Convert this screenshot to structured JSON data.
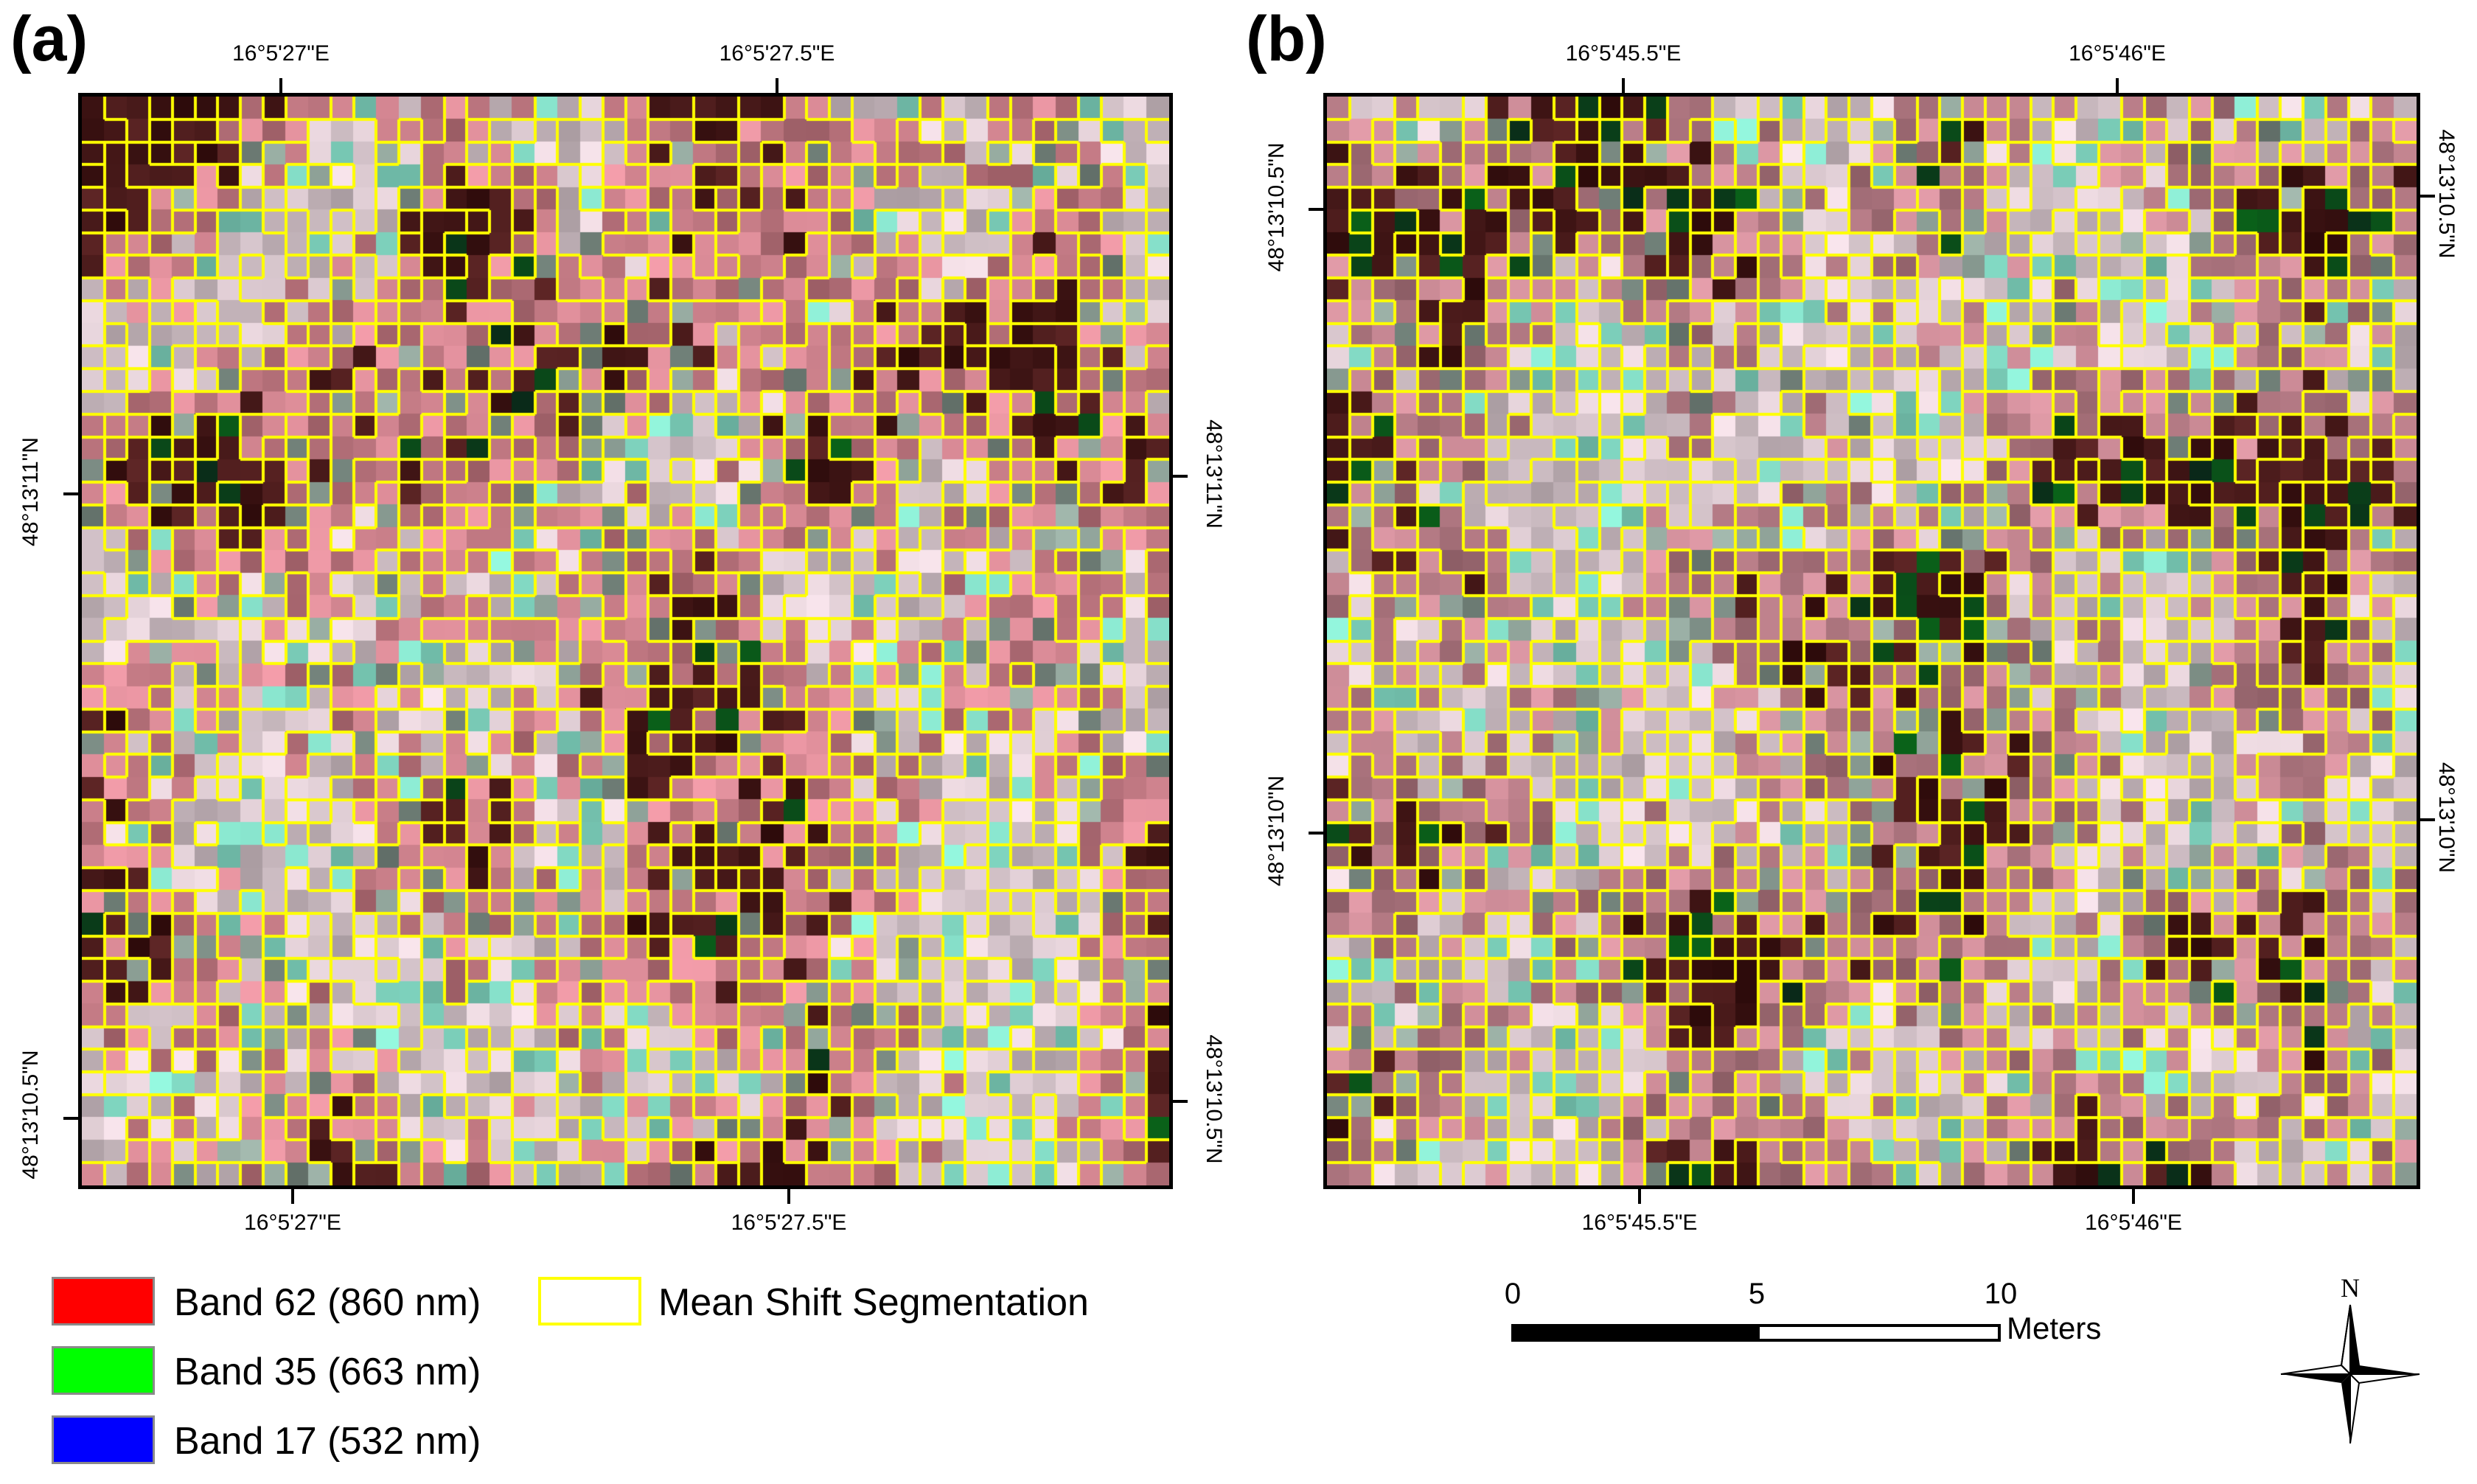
{
  "panels": [
    {
      "label": "(a)",
      "top_ticks": [
        "16°5'27\"E",
        "16°5'27.5\"E"
      ],
      "bottom_ticks": [
        "16°5'27\"E",
        "16°5'27.5\"E"
      ],
      "left_ticks": [
        "48°13'11\"N",
        "48°13'10.5\"N"
      ],
      "right_ticks": [
        "48°13'11\"N",
        "48°13'10.5\"N"
      ]
    },
    {
      "label": "(b)",
      "top_ticks": [
        "16°5'45.5\"E",
        "16°5'46\"E"
      ],
      "bottom_ticks": [
        "16°5'45.5\"E",
        "16°5'46\"E"
      ],
      "left_ticks": [
        "48°13'10.5\"N",
        "48°13'10\"N"
      ],
      "right_ticks": [
        "48°13'10.5\"N",
        "48°13'10\"N"
      ]
    }
  ],
  "legend": {
    "items": [
      {
        "label": "Band 62 (860 nm)",
        "color": "#ff0000"
      },
      {
        "label": "Band 35 (663 nm)",
        "color": "#00ff00"
      },
      {
        "label": "Band 17 (532 nm)",
        "color": "#0000ff"
      }
    ],
    "segmentation": {
      "label": "Mean Shift Segmentation",
      "outline_color": "#ffff00"
    }
  },
  "scale_bar": {
    "ticks": [
      "0",
      "5",
      "10"
    ],
    "unit": "Meters"
  },
  "north_arrow": {
    "label": "N"
  },
  "colors": {
    "segment_line": "#ffff00",
    "frame": "#000000"
  }
}
